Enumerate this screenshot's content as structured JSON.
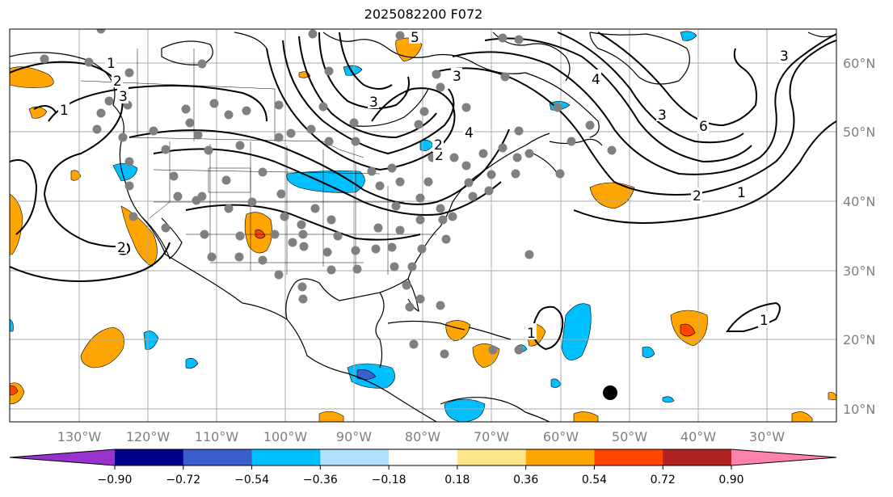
{
  "title": "2025082200 F072",
  "map": {
    "lon_labels": [
      "130°W",
      "120°W",
      "110°W",
      "100°W",
      "90°W",
      "80°W",
      "70°W",
      "60°W",
      "50°W",
      "40°W",
      "30°W"
    ],
    "lat_labels": [
      "60°N",
      "50°N",
      "40°N",
      "30°N",
      "20°N",
      "10°N"
    ],
    "contour_labels": [
      "2",
      "3",
      "1",
      "2",
      "3",
      "3",
      "4",
      "3",
      "4",
      "3",
      "6",
      "2",
      "1",
      "2",
      "1",
      "1",
      "2",
      "1",
      "5"
    ],
    "colors": {
      "land_line": "#000000",
      "grid": "#a9a9a9",
      "station": "#808080",
      "marker": "#000000"
    }
  },
  "colorbar": {
    "ticks": [
      "−0.90",
      "−0.72",
      "−0.54",
      "−0.36",
      "−0.18",
      "0.18",
      "0.36",
      "0.54",
      "0.72",
      "0.90"
    ],
    "colors": [
      "#9932cc",
      "#00008b",
      "#3a5fcd",
      "#00bfff",
      "#b0e2ff",
      "#ffffff",
      "#fde68a",
      "#ffa500",
      "#ff4500",
      "#b22222",
      "#ff82ab"
    ]
  }
}
